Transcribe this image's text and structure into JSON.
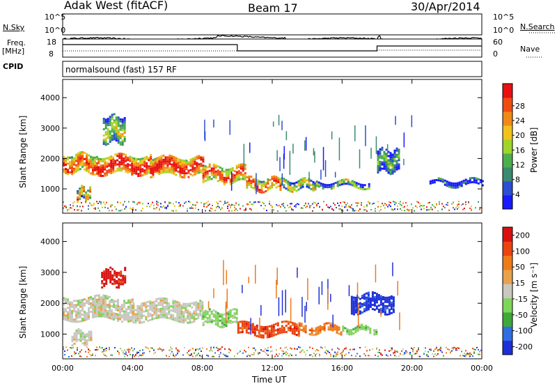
{
  "header": {
    "station": "Adak West (fitACF)",
    "beam": "Beam 17",
    "date": "30/Apr/2014"
  },
  "aux": {
    "nsky_label": "N.Sky",
    "nsky_ticks": [
      "10^5",
      "10^0"
    ],
    "nsearch_label": "N.Search",
    "freq_label": "Freq.",
    "freq_unit": "[MHz]",
    "freq_ticks": [
      "18",
      "8"
    ],
    "nave_label": "Nave",
    "nave_ticks": [
      "60",
      "0"
    ],
    "cpid_label": "CPID",
    "cpid_value": "normalsound (fast) 157 RF"
  },
  "colors": {
    "power": [
      "#1a1aff",
      "#2a4fd0",
      "#3a8a6e",
      "#4cae4c",
      "#9fd42a",
      "#f0c21c",
      "#f08a16",
      "#ef4c12",
      "#e81010"
    ],
    "velocity": [
      "#1e2fd8",
      "#2f6de0",
      "#3fa83a",
      "#7fd45a",
      "#c8c8c0",
      "#e8a24c",
      "#ee7a1a",
      "#ea4410",
      "#d81010"
    ]
  },
  "chart_data": [
    {
      "type": "heatmap",
      "name": "power-panel",
      "ylabel": "Slant Range [km]",
      "y_ticks": [
        1000,
        2000,
        3000,
        4000
      ],
      "ylim": [
        200,
        4600
      ],
      "xlabel": "Time UT",
      "x_ticks": [
        "00:00",
        "04:00",
        "08:00",
        "12:00",
        "16:00",
        "20:00",
        "00:00"
      ],
      "xlim_hours": [
        0,
        24
      ],
      "colorbar": {
        "label": "Power [dB]",
        "ticks": [
          "4",
          "8",
          "12",
          "16",
          "20",
          "24",
          "28"
        ]
      },
      "echo_bands": [
        {
          "t0": 0.0,
          "t1": 2.0,
          "r0": 1550,
          "r1": 2150,
          "level": 6
        },
        {
          "t0": 2.0,
          "t1": 5.0,
          "r0": 1500,
          "r1": 2100,
          "level": 7
        },
        {
          "t0": 5.0,
          "t1": 8.0,
          "r0": 1500,
          "r1": 2050,
          "level": 7
        },
        {
          "t0": 8.0,
          "t1": 10.5,
          "r0": 1250,
          "r1": 1750,
          "level": 6
        },
        {
          "t0": 10.5,
          "t1": 12.5,
          "r0": 950,
          "r1": 1350,
          "level": 6
        },
        {
          "t0": 12.5,
          "t1": 14.5,
          "r0": 1000,
          "r1": 1300,
          "level": 4
        },
        {
          "t0": 14.5,
          "t1": 17.5,
          "r0": 1050,
          "r1": 1250,
          "level": 3
        },
        {
          "t0": 2.3,
          "t1": 3.6,
          "r0": 2550,
          "r1": 3400,
          "level": 3
        },
        {
          "t0": 0.8,
          "t1": 1.6,
          "r0": 700,
          "r1": 1050,
          "level": 5
        },
        {
          "t0": 18.0,
          "t1": 19.3,
          "r0": 1600,
          "r1": 2300,
          "level": 2
        },
        {
          "t0": 21.0,
          "t1": 24.0,
          "r0": 1150,
          "r1": 1300,
          "level": 1
        }
      ]
    },
    {
      "type": "heatmap",
      "name": "velocity-panel",
      "ylabel": "Slant Range [km]",
      "y_ticks": [
        1000,
        2000,
        3000,
        4000
      ],
      "ylim": [
        200,
        4600
      ],
      "xlabel": "Time UT",
      "x_ticks": [
        "00:00",
        "04:00",
        "08:00",
        "12:00",
        "16:00",
        "20:00",
        "00:00"
      ],
      "xlim_hours": [
        0,
        24
      ],
      "colorbar": {
        "label": "Velocity [m s⁻¹]",
        "ticks": [
          "200",
          "100",
          "50",
          "15",
          "-15",
          "-50",
          "-100",
          "-200"
        ]
      },
      "echo_bands": [
        {
          "t0": 0.0,
          "t1": 4.0,
          "r0": 1500,
          "r1": 2200,
          "level": 4
        },
        {
          "t0": 4.0,
          "t1": 8.0,
          "r0": 1450,
          "r1": 2100,
          "level": 4
        },
        {
          "t0": 2.2,
          "t1": 3.6,
          "r0": 2600,
          "r1": 3100,
          "level": 8
        },
        {
          "t0": 8.0,
          "t1": 10.0,
          "r0": 1300,
          "r1": 1750,
          "level": 3
        },
        {
          "t0": 10.0,
          "t1": 13.5,
          "r0": 950,
          "r1": 1350,
          "level": 7
        },
        {
          "t0": 13.5,
          "t1": 16.0,
          "r0": 1050,
          "r1": 1300,
          "level": 6
        },
        {
          "t0": 16.0,
          "t1": 18.0,
          "r0": 1050,
          "r1": 1250,
          "level": 3
        },
        {
          "t0": 16.5,
          "t1": 19.0,
          "r0": 1700,
          "r1": 2300,
          "level": 0
        },
        {
          "t0": 0.5,
          "t1": 1.6,
          "r0": 750,
          "r1": 1100,
          "level": 4
        }
      ]
    }
  ]
}
